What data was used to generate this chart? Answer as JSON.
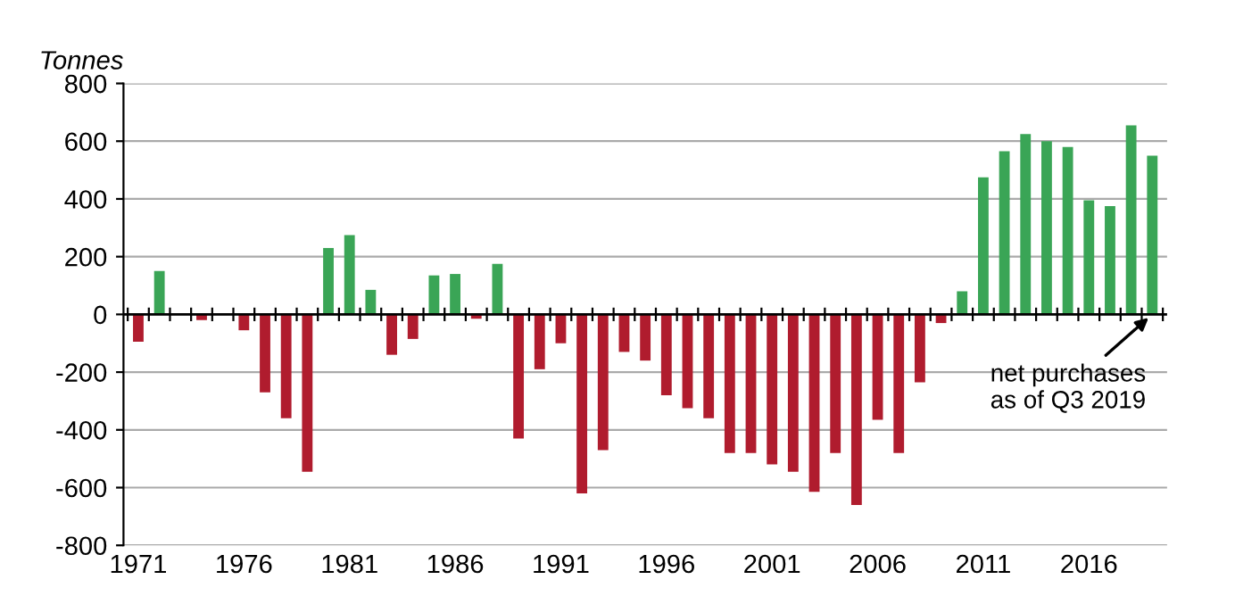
{
  "chart_data": {
    "type": "bar",
    "ylabel": "Tonnes",
    "categories": [
      "1971",
      null,
      null,
      null,
      null,
      "1976",
      null,
      null,
      null,
      null,
      "1981",
      null,
      null,
      null,
      null,
      "1986",
      null,
      null,
      null,
      null,
      "1991",
      null,
      null,
      null,
      null,
      "1996",
      null,
      null,
      null,
      null,
      "2001",
      null,
      null,
      null,
      null,
      "2006",
      null,
      null,
      null,
      null,
      "2011",
      null,
      null,
      null,
      null,
      "2016",
      null,
      null,
      null
    ],
    "series": [
      {
        "values": [
          -95,
          150,
          null,
          -20,
          null,
          -55,
          -270,
          -360,
          -545,
          230,
          275,
          85,
          -140,
          -85,
          135,
          140,
          -15,
          175,
          -430,
          -190,
          -100,
          -620,
          -470,
          -130,
          -160,
          -280,
          -325,
          -360,
          -480,
          -480,
          -520,
          -545,
          -615,
          -480,
          -660,
          -365,
          -480,
          -235,
          -30,
          80,
          475,
          565,
          625,
          600,
          580,
          395,
          375,
          655,
          550
        ],
        "colors": [
          "#b01c2e",
          "#3aa556",
          "#b01c2e",
          "#b01c2e",
          "#b01c2e",
          "#b01c2e",
          "#b01c2e",
          "#b01c2e",
          "#b01c2e",
          "#3aa556",
          "#3aa556",
          "#3aa556",
          "#b01c2e",
          "#b01c2e",
          "#3aa556",
          "#3aa556",
          "#b01c2e",
          "#3aa556",
          "#b01c2e",
          "#b01c2e",
          "#b01c2e",
          "#b01c2e",
          "#b01c2e",
          "#b01c2e",
          "#b01c2e",
          "#b01c2e",
          "#b01c2e",
          "#b01c2e",
          "#b01c2e",
          "#b01c2e",
          "#b01c2e",
          "#b01c2e",
          "#b01c2e",
          "#b01c2e",
          "#b01c2e",
          "#b01c2e",
          "#b01c2e",
          "#b01c2e",
          "#b01c2e",
          "#3aa556",
          "#3aa556",
          "#3aa556",
          "#3aa556",
          "#3aa556",
          "#3aa556",
          "#3aa556",
          "#3aa556",
          "#3aa556",
          "#3aa556"
        ]
      }
    ],
    "ylim": [
      -800,
      800
    ],
    "yticks": [
      -800,
      -600,
      -400,
      -200,
      0,
      200,
      400,
      600,
      800
    ],
    "grid": "y",
    "legend": false,
    "ref_lines": [
      {
        "axis": "y",
        "value": 0,
        "color": "#000000"
      }
    ],
    "annotations": [
      {
        "text": "net purchases\nas of Q3 2019",
        "y": 0
      }
    ]
  }
}
